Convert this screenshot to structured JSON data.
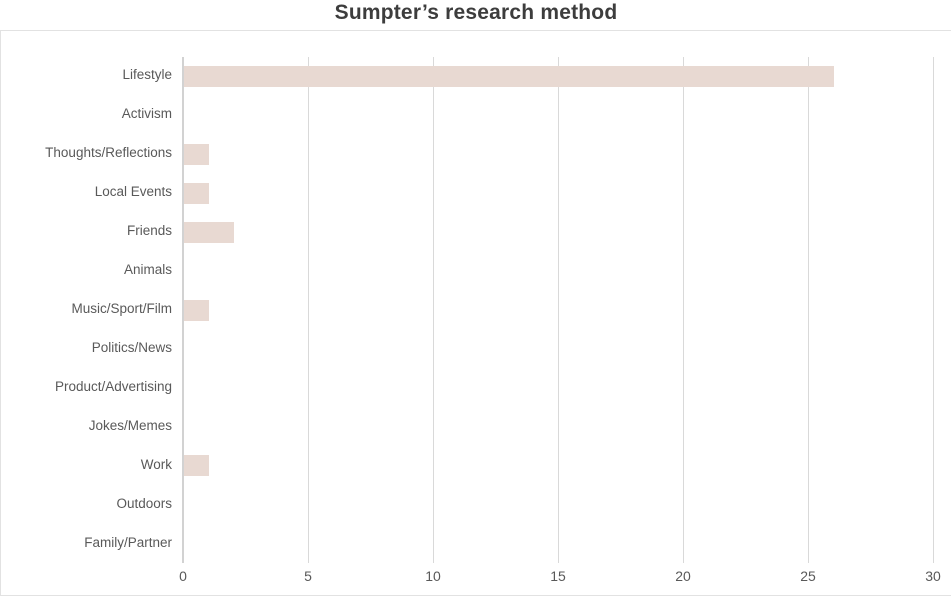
{
  "chart_data": {
    "type": "bar",
    "orientation": "horizontal",
    "title": "Sumpter’s research method",
    "categories": [
      "Lifestyle",
      "Activism",
      "Thoughts/Reflections",
      "Local Events",
      "Friends",
      "Animals",
      "Music/Sport/Film",
      "Politics/News",
      "Product/Advertising",
      "Jokes/Memes",
      "Work",
      "Outdoors",
      "Family/Partner"
    ],
    "values": [
      26,
      0,
      1,
      1,
      2,
      0,
      1,
      0,
      0,
      0,
      1,
      0,
      0
    ],
    "xlabel": "",
    "ylabel": "",
    "xlim": [
      0,
      30
    ],
    "xticks": [
      0,
      5,
      10,
      15,
      20,
      25,
      30
    ],
    "grid": true,
    "legend": false,
    "colors": {
      "bar": "#e8d9d2",
      "gridline": "#d9d9d9",
      "axis_line": "#d2d2d2",
      "labels": "#595959",
      "title": "#3d3d3d"
    }
  }
}
